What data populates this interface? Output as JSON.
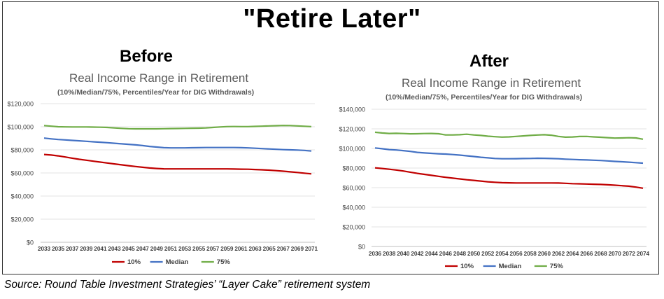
{
  "title": "\"Retire Later\"",
  "source": "Source: Round Table Investment Strategies’ “Layer Cake” retirement system",
  "colors": {
    "p10": "#c00000",
    "median": "#4472c4",
    "p75": "#70ad47"
  },
  "chart_data": [
    {
      "type": "line",
      "panel_label": "Before",
      "title": "Real Income Range in Retirement",
      "subtitle": "(10%/Median/75%, Percentiles/Year for DIG Withdrawals)",
      "x": [
        2033,
        2034,
        2035,
        2036,
        2037,
        2038,
        2039,
        2040,
        2041,
        2042,
        2043,
        2044,
        2045,
        2046,
        2047,
        2048,
        2049,
        2050,
        2051,
        2052,
        2053,
        2054,
        2055,
        2056,
        2057,
        2058,
        2059,
        2060,
        2061,
        2062,
        2063,
        2064,
        2065,
        2066,
        2067,
        2068,
        2069,
        2070,
        2071
      ],
      "x_tick_labels": [
        "2033",
        "2035",
        "2037",
        "2039",
        "2041",
        "2043",
        "2045",
        "2047",
        "2049",
        "2051",
        "2053",
        "2055",
        "2057",
        "2059",
        "2061",
        "2063",
        "2065",
        "2067",
        "2069",
        "2071"
      ],
      "ylim": [
        0,
        120000
      ],
      "y_tick_labels": [
        "$0",
        "$20,000",
        "$40,000",
        "$60,000",
        "$80,000",
        "$100,000",
        "$120,000"
      ],
      "series": [
        {
          "name": "10%",
          "values": [
            76000,
            75500,
            74800,
            73800,
            72800,
            71800,
            71000,
            70200,
            69400,
            68600,
            67800,
            67000,
            66300,
            65600,
            64900,
            64300,
            63900,
            63600,
            63500,
            63500,
            63500,
            63500,
            63500,
            63500,
            63500,
            63500,
            63500,
            63400,
            63300,
            63200,
            63000,
            62700,
            62400,
            62000,
            61500,
            61000,
            60400,
            59800,
            59200
          ]
        },
        {
          "name": "Median",
          "values": [
            90200,
            89500,
            89000,
            88600,
            88200,
            87800,
            87400,
            87000,
            86600,
            86200,
            85700,
            85200,
            84800,
            84300,
            83700,
            83000,
            82400,
            81900,
            81700,
            81700,
            81700,
            81800,
            81900,
            82000,
            82000,
            82000,
            82000,
            82000,
            81900,
            81700,
            81400,
            81100,
            80800,
            80500,
            80200,
            80000,
            79800,
            79500,
            79000
          ]
        },
        {
          "name": "75%",
          "values": [
            101000,
            100500,
            100000,
            99900,
            99800,
            99800,
            99800,
            99700,
            99600,
            99400,
            99000,
            98600,
            98300,
            98200,
            98200,
            98200,
            98200,
            98300,
            98400,
            98500,
            98600,
            98700,
            98800,
            99000,
            99400,
            99800,
            100100,
            100200,
            100100,
            100100,
            100300,
            100500,
            100700,
            100900,
            101100,
            101000,
            100700,
            100400,
            100100
          ]
        }
      ]
    },
    {
      "type": "line",
      "panel_label": "After",
      "title": "Real Income Range in Retirement",
      "subtitle": "(10%/Median/75%, Percentiles/Year for DIG Withdrawals)",
      "x": [
        2036,
        2037,
        2038,
        2039,
        2040,
        2041,
        2042,
        2043,
        2044,
        2045,
        2046,
        2047,
        2048,
        2049,
        2050,
        2051,
        2052,
        2053,
        2054,
        2055,
        2056,
        2057,
        2058,
        2059,
        2060,
        2061,
        2062,
        2063,
        2064,
        2065,
        2066,
        2067,
        2068,
        2069,
        2070,
        2071,
        2072,
        2073,
        2074
      ],
      "x_tick_labels": [
        "2036",
        "2038",
        "2040",
        "2042",
        "2044",
        "2046",
        "2048",
        "2050",
        "2052",
        "2054",
        "2056",
        "2058",
        "2060",
        "2062",
        "2064",
        "2066",
        "2068",
        "2070",
        "2072",
        "2074"
      ],
      "ylim": [
        0,
        140000
      ],
      "y_tick_labels": [
        "$0",
        "$20,000",
        "$40,000",
        "$60,000",
        "$80,000",
        "$100,000",
        "$120,000",
        "$140,000"
      ],
      "series": [
        {
          "name": "10%",
          "values": [
            80200,
            79600,
            78800,
            78000,
            77000,
            75800,
            74600,
            73600,
            72600,
            71600,
            70600,
            69700,
            68900,
            68100,
            67400,
            66700,
            66000,
            65500,
            65100,
            64900,
            64800,
            64800,
            64800,
            64800,
            64800,
            64800,
            64700,
            64400,
            64100,
            63900,
            63700,
            63500,
            63300,
            62900,
            62500,
            62000,
            61500,
            60600,
            59400
          ]
        },
        {
          "name": "Median",
          "values": [
            100500,
            99700,
            98800,
            98400,
            97800,
            97000,
            96000,
            95400,
            95000,
            94600,
            94300,
            93800,
            93200,
            92500,
            91800,
            91000,
            90400,
            89800,
            89500,
            89500,
            89600,
            89700,
            89800,
            90000,
            89900,
            89700,
            89500,
            89100,
            88800,
            88500,
            88300,
            88000,
            87700,
            87300,
            86800,
            86400,
            86000,
            85500,
            85000
          ]
        },
        {
          "name": "75%",
          "values": [
            116500,
            115800,
            115300,
            115400,
            115200,
            114900,
            115000,
            115200,
            115300,
            115000,
            113800,
            113800,
            114000,
            114500,
            113800,
            113300,
            112500,
            112000,
            111600,
            111800,
            112300,
            112800,
            113300,
            113700,
            114000,
            113500,
            112300,
            111500,
            111700,
            112200,
            112300,
            111800,
            111400,
            111000,
            110600,
            110700,
            110900,
            110700,
            109400
          ]
        }
      ]
    }
  ]
}
